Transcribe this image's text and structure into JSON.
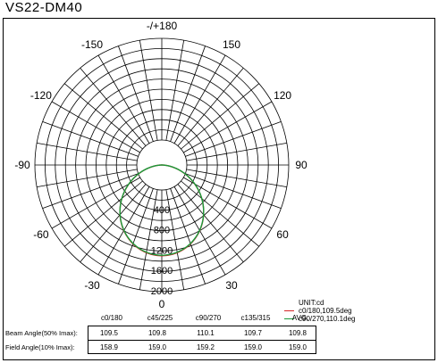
{
  "title": "VS22-DM40",
  "chart_data": {
    "type": "polar",
    "angle_labels": [
      {
        "angle": 180,
        "text": "-/+180"
      },
      {
        "angle": -150,
        "text": "-150"
      },
      {
        "angle": 150,
        "text": "150"
      },
      {
        "angle": -120,
        "text": "-120"
      },
      {
        "angle": 120,
        "text": "120"
      },
      {
        "angle": -90,
        "text": "-90"
      },
      {
        "angle": 90,
        "text": "90"
      },
      {
        "angle": -60,
        "text": "-60"
      },
      {
        "angle": 60,
        "text": "60"
      },
      {
        "angle": -30,
        "text": "-30"
      },
      {
        "angle": 30,
        "text": "30"
      },
      {
        "angle": 0,
        "text": "0"
      }
    ],
    "radial_ticks": [
      400,
      800,
      1200,
      1600,
      2000
    ],
    "radial_max": 2000,
    "radial_grid_step": 200,
    "angular_grid_step": 10,
    "unit": "UNIT:cd",
    "series": [
      {
        "name": "c0/180,109.5deg",
        "color": "#d62728",
        "peak": 1785,
        "beam_angle": 109.5
      },
      {
        "name": "c90/270,110.1deg",
        "color": "#1a9a3a",
        "peak": 1775,
        "beam_angle": 110.1
      }
    ]
  },
  "table": {
    "columns": [
      "c0/180",
      "c45/225",
      "c90/270",
      "c135/315",
      "AVG."
    ],
    "rows": [
      {
        "label": "Beam Angle(50% Imax):",
        "values": [
          "109.5",
          "109.8",
          "110.1",
          "109.7",
          "109.8"
        ]
      },
      {
        "label": "Field Angle(10% Imax):",
        "values": [
          "158.9",
          "159.0",
          "159.2",
          "159.0",
          "159.0"
        ]
      }
    ]
  }
}
